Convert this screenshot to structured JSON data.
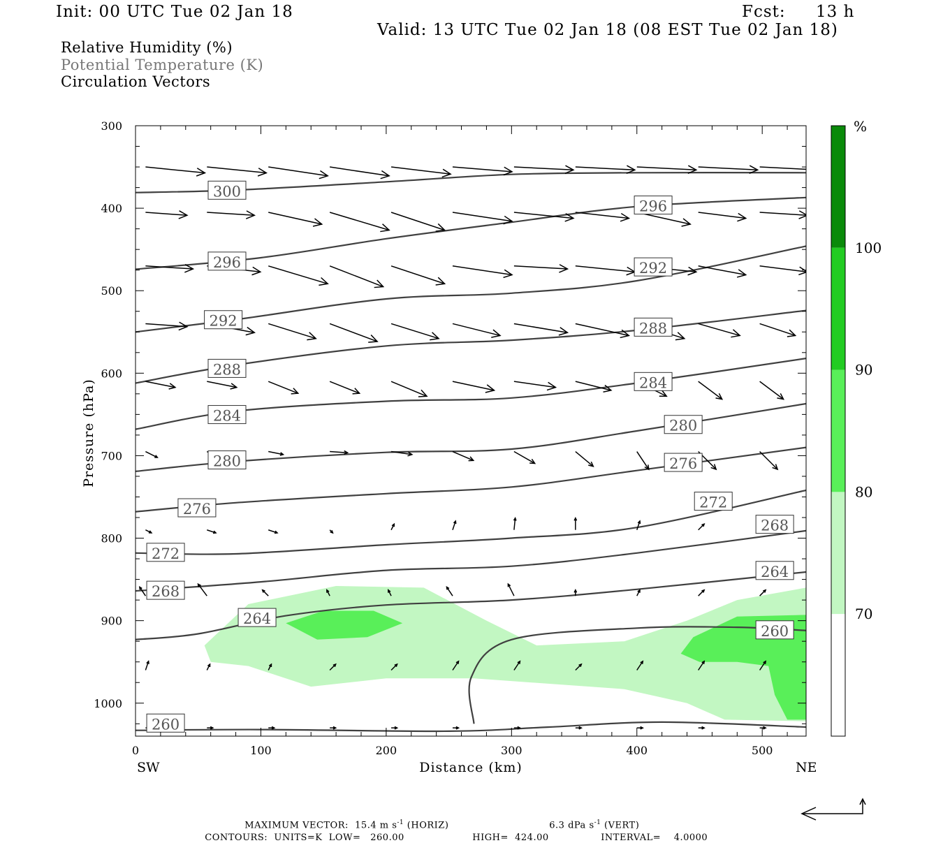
{
  "header": {
    "init": "Init: 00 UTC Tue 02 Jan 18",
    "fcst_label": "Fcst:",
    "fcst_value": "13 h",
    "valid": "Valid: 13 UTC Tue 02 Jan 18 (08 EST Tue 02 Jan 18)"
  },
  "legend": {
    "rh": "Relative Humidity (%)",
    "theta": "Potential Temperature (K)",
    "vectors": "Circulation Vectors"
  },
  "colors": {
    "rh_70_80": "#c2f7c2",
    "rh_80_90": "#59ef59",
    "rh_90_100": "#22cc22",
    "rh_100_plus": "#0a8a0a",
    "contour": "#404040",
    "theta_text": "#777777"
  },
  "chart_data": {
    "type": "cross-section",
    "xlabel": "Distance (km)",
    "ylabel": "Pressure (hPa)",
    "xlim": [
      0,
      535
    ],
    "ylim": [
      1040,
      300
    ],
    "x_ticks": [
      0,
      100,
      200,
      300,
      400,
      500
    ],
    "x_tick_labels": [
      "0",
      "100",
      "200",
      "300",
      "400",
      "500"
    ],
    "y_ticks": [
      300,
      400,
      500,
      600,
      700,
      800,
      900,
      1000
    ],
    "y_tick_labels": [
      "300",
      "400",
      "500",
      "600",
      "700",
      "800",
      "900",
      "1000"
    ],
    "left_end": "SW",
    "right_end": "NE",
    "colorbar": {
      "unit": "%",
      "levels": [
        70,
        80,
        90,
        100
      ],
      "level_labels": [
        "70",
        "80",
        "90",
        "100"
      ]
    },
    "theta_contours": [
      {
        "level": 300,
        "label": "300",
        "points": [
          [
            0,
            381
          ],
          [
            80,
            378
          ],
          [
            200,
            368
          ],
          [
            300,
            359
          ],
          [
            400,
            357
          ],
          [
            535,
            357
          ]
        ],
        "label_at": [
          73,
          379
        ]
      },
      {
        "level": 296,
        "label": "296",
        "points": [
          [
            0,
            474
          ],
          [
            100,
            460
          ],
          [
            200,
            437
          ],
          [
            300,
            417
          ],
          [
            400,
            398
          ],
          [
            535,
            387
          ]
        ],
        "label_at": [
          73,
          465
        ]
      },
      {
        "level": 296,
        "label": "296",
        "points": [],
        "label_at": [
          413,
          397
        ]
      },
      {
        "level": 292,
        "label": "292",
        "points": [
          [
            0,
            550
          ],
          [
            80,
            535
          ],
          [
            200,
            510
          ],
          [
            300,
            503
          ],
          [
            400,
            488
          ],
          [
            535,
            446
          ]
        ],
        "label_at": [
          70,
          536
        ]
      },
      {
        "level": 292,
        "label": "292",
        "points": [],
        "label_at": [
          413,
          472
        ]
      },
      {
        "level": 288,
        "label": "288",
        "points": [
          [
            0,
            612
          ],
          [
            80,
            590
          ],
          [
            200,
            567
          ],
          [
            300,
            560
          ],
          [
            400,
            548
          ],
          [
            535,
            524
          ]
        ],
        "label_at": [
          73,
          595
        ]
      },
      {
        "level": 288,
        "label": "288",
        "points": [],
        "label_at": [
          413,
          545
        ]
      },
      {
        "level": 284,
        "label": "284",
        "points": [
          [
            0,
            668
          ],
          [
            80,
            646
          ],
          [
            200,
            634
          ],
          [
            300,
            630
          ],
          [
            400,
            612
          ],
          [
            535,
            582
          ]
        ],
        "label_at": [
          73,
          651
        ]
      },
      {
        "level": 284,
        "label": "284",
        "points": [],
        "label_at": [
          413,
          611
        ]
      },
      {
        "level": 280,
        "label": "280",
        "points": [
          [
            0,
            719
          ],
          [
            80,
            707
          ],
          [
            200,
            696
          ],
          [
            300,
            692
          ],
          [
            400,
            670
          ],
          [
            535,
            637
          ]
        ],
        "label_at": [
          73,
          706
        ]
      },
      {
        "level": 280,
        "label": "280",
        "points": [],
        "label_at": [
          437,
          663
        ]
      },
      {
        "level": 276,
        "label": "276",
        "points": [
          [
            0,
            768
          ],
          [
            80,
            757
          ],
          [
            200,
            746
          ],
          [
            300,
            738
          ],
          [
            400,
            718
          ],
          [
            535,
            690
          ]
        ],
        "label_at": [
          49,
          764
        ]
      },
      {
        "level": 276,
        "label": "276",
        "points": [],
        "label_at": [
          437,
          709
        ]
      },
      {
        "level": 272,
        "label": "272",
        "points": [
          [
            0,
            818
          ],
          [
            80,
            819
          ],
          [
            200,
            808
          ],
          [
            300,
            800
          ],
          [
            400,
            787
          ],
          [
            535,
            742
          ]
        ],
        "label_at": [
          24,
          818
        ]
      },
      {
        "level": 272,
        "label": "272",
        "points": [],
        "label_at": [
          461,
          756
        ]
      },
      {
        "level": 268,
        "label": "268",
        "points": [
          [
            0,
            864
          ],
          [
            100,
            853
          ],
          [
            200,
            839
          ],
          [
            300,
            834
          ],
          [
            400,
            818
          ],
          [
            535,
            791
          ]
        ],
        "label_at": [
          24,
          864
        ]
      },
      {
        "level": 268,
        "label": "268",
        "points": [],
        "label_at": [
          510,
          784
        ]
      },
      {
        "level": 264,
        "label": "264",
        "points": [
          [
            0,
            923
          ],
          [
            50,
            916
          ],
          [
            120,
            894
          ],
          [
            200,
            881
          ],
          [
            300,
            875
          ],
          [
            400,
            862
          ],
          [
            535,
            841
          ]
        ],
        "label_at": [
          97,
          897
        ]
      },
      {
        "level": 264,
        "label": "264",
        "points": [],
        "label_at": [
          510,
          840
        ]
      },
      {
        "level": 260,
        "label": "260",
        "points": [
          [
            0,
            1033
          ],
          [
            100,
            1032
          ],
          [
            250,
            1034
          ],
          [
            330,
            1029
          ],
          [
            420,
            1023
          ],
          [
            535,
            1029
          ]
        ],
        "label_at": [
          24,
          1025
        ]
      },
      {
        "level": 260,
        "label": "260",
        "points": [
          [
            270,
            1025
          ],
          [
            268,
            968
          ],
          [
            300,
            923
          ],
          [
            400,
            909
          ],
          [
            480,
            908
          ],
          [
            535,
            912
          ]
        ],
        "label_at": [
          510,
          912
        ]
      }
    ],
    "rh_regions": [
      {
        "level": 70,
        "points": [
          [
            55,
            930
          ],
          [
            90,
            880
          ],
          [
            160,
            858
          ],
          [
            230,
            860
          ],
          [
            280,
            900
          ],
          [
            320,
            930
          ],
          [
            390,
            925
          ],
          [
            440,
            900
          ],
          [
            480,
            875
          ],
          [
            535,
            860
          ],
          [
            535,
            1022
          ],
          [
            470,
            1020
          ],
          [
            440,
            1000
          ],
          [
            390,
            983
          ],
          [
            270,
            970
          ],
          [
            200,
            970
          ],
          [
            140,
            980
          ],
          [
            90,
            955
          ],
          [
            60,
            950
          ]
        ]
      },
      {
        "level": 80,
        "points": [
          [
            120,
            903
          ],
          [
            150,
            888
          ],
          [
            190,
            888
          ],
          [
            213,
            903
          ],
          [
            185,
            920
          ],
          [
            145,
            923
          ]
        ]
      },
      {
        "level": 80,
        "points": [
          [
            435,
            940
          ],
          [
            445,
            920
          ],
          [
            480,
            895
          ],
          [
            535,
            893
          ],
          [
            535,
            1020
          ],
          [
            520,
            1020
          ],
          [
            510,
            990
          ],
          [
            505,
            955
          ],
          [
            480,
            950
          ],
          [
            450,
            950
          ]
        ]
      }
    ],
    "vectors_note": "circulation vectors in the x-p plane",
    "max_vector": {
      "label": "MAXIMUM VECTOR:",
      "horizontal": "15.4 m s",
      "horizontal_exp": "-1",
      "horizontal_note": "(HORIZ)",
      "vertical": "6.3 dPa s",
      "vertical_exp": "-1",
      "vertical_note": "(VERT)"
    },
    "contours_info": {
      "label": "CONTOURS:",
      "units": "UNITS=K",
      "low": "LOW=",
      "low_value": "260.00",
      "high": "HIGH=",
      "high_value": "424.00",
      "interval": "INTERVAL=",
      "interval_value": "4.0000"
    },
    "vector_rows": [
      {
        "p": 350,
        "u": [
          1.0,
          1.0,
          1.0,
          1.0,
          1.0,
          1.0,
          1.0,
          1.0,
          1.0,
          1.0,
          1.0
        ],
        "w": [
          0.1,
          0.1,
          0.15,
          0.15,
          0.12,
          0.08,
          0.05,
          0.05,
          0.05,
          0.05,
          0.05
        ]
      },
      {
        "p": 405,
        "u": [
          0.7,
          0.8,
          0.9,
          1.0,
          0.9,
          1.0,
          1.0,
          0.9,
          0.9,
          0.8,
          0.8
        ],
        "w": [
          0.05,
          0.05,
          0.2,
          0.3,
          0.3,
          0.15,
          0.1,
          0.1,
          0.2,
          0.1,
          0.05
        ]
      },
      {
        "p": 470,
        "u": [
          0.8,
          0.9,
          1.0,
          0.9,
          0.9,
          1.0,
          0.9,
          1.0,
          1.0,
          0.8,
          0.8
        ],
        "w": [
          0.05,
          0.1,
          0.3,
          0.35,
          0.3,
          0.15,
          0.05,
          0.1,
          0.1,
          0.15,
          0.1
        ]
      },
      {
        "p": 540,
        "u": [
          0.7,
          0.8,
          0.8,
          0.8,
          0.8,
          0.8,
          0.9,
          0.9,
          0.8,
          0.7,
          0.6
        ],
        "w": [
          0.05,
          0.15,
          0.25,
          0.3,
          0.25,
          0.2,
          0.15,
          0.2,
          0.25,
          0.2,
          0.2
        ]
      },
      {
        "p": 610,
        "u": [
          0.5,
          0.5,
          0.5,
          0.5,
          0.6,
          0.7,
          0.7,
          0.6,
          0.5,
          0.4,
          0.4
        ],
        "w": [
          0.1,
          0.1,
          0.2,
          0.2,
          0.25,
          0.15,
          0.1,
          0.15,
          0.25,
          0.3,
          0.3
        ]
      },
      {
        "p": 695,
        "u": [
          0.2,
          0.2,
          0.25,
          0.3,
          0.35,
          0.35,
          0.35,
          0.3,
          0.2,
          0.3,
          0.3
        ],
        "w": [
          0.1,
          0.1,
          0.05,
          0.02,
          0.05,
          0.15,
          0.2,
          0.25,
          0.3,
          0.3,
          0.3
        ]
      },
      {
        "p": 790,
        "u": [
          0.1,
          0.15,
          0.15,
          0.05,
          0.05,
          0.05,
          0.02,
          0.0,
          0.05,
          0.1,
          0.1
        ],
        "w": [
          0.05,
          0.05,
          0.05,
          0.05,
          -0.1,
          -0.15,
          -0.2,
          -0.2,
          -0.15,
          -0.1,
          -0.1
        ]
      },
      {
        "p": 870,
        "u": [
          -0.1,
          -0.15,
          -0.1,
          -0.05,
          -0.05,
          -0.1,
          -0.1,
          0.0,
          0.05,
          0.1,
          0.1
        ],
        "w": [
          -0.15,
          -0.2,
          -0.1,
          -0.1,
          -0.1,
          -0.15,
          -0.2,
          -0.1,
          -0.1,
          -0.1,
          -0.1
        ]
      },
      {
        "p": 960,
        "u": [
          0.05,
          0.05,
          0.05,
          0.1,
          0.1,
          0.1,
          0.1,
          0.1,
          0.1,
          0.1,
          0.1
        ],
        "w": [
          -0.15,
          -0.1,
          -0.1,
          -0.1,
          -0.1,
          -0.15,
          -0.15,
          -0.1,
          -0.15,
          -0.15,
          -0.15
        ]
      },
      {
        "p": 1030,
        "u": [
          0.1,
          0.1,
          0.1,
          0.1,
          0.1,
          0.1,
          0.1,
          0.1,
          0.1,
          0.1,
          0.1
        ],
        "w": [
          0.0,
          0.0,
          0.0,
          0.0,
          0.0,
          0.0,
          0.0,
          0.0,
          0.0,
          0.0,
          0.0
        ]
      }
    ]
  }
}
